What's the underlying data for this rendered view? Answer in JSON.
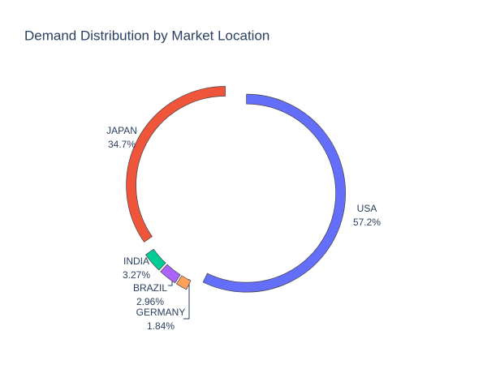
{
  "chart_data": {
    "type": "donut",
    "title": "Demand Distribution by Market Location",
    "categories": [
      "USA",
      "GERMANY",
      "BRAZIL",
      "INDIA",
      "JAPAN"
    ],
    "values": [
      57.2,
      1.84,
      2.96,
      3.27,
      34.7
    ],
    "value_labels": [
      "57.2%",
      "1.84%",
      "2.96%",
      "3.27%",
      "34.7%"
    ],
    "colors": [
      "#636efa",
      "#ffa15a",
      "#ab63fa",
      "#00cc96",
      "#ef553b"
    ]
  }
}
